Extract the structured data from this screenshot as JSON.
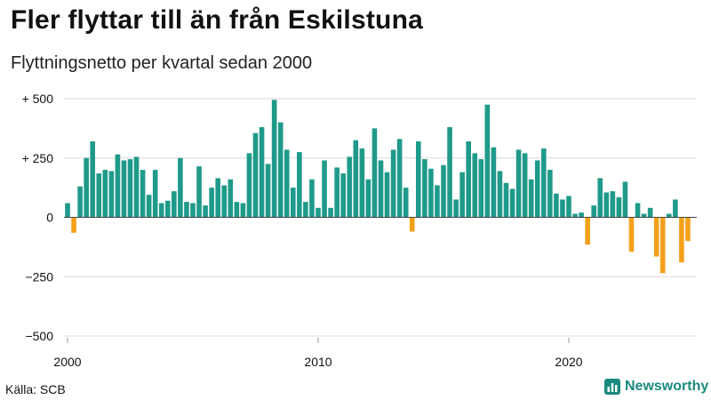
{
  "header": {
    "title": "Fler flyttar till än från Eskilstuna",
    "subtitle": "Flyttningsnetto per kvartal sedan 2000"
  },
  "footer": {
    "source": "Källa: SCB",
    "brand": "Newsworthy",
    "brand_icon": "bar-chart-logo-icon"
  },
  "colors": {
    "positive": "#1f9a8a",
    "negative": "#f5a01a",
    "grid": "#d9d9d9",
    "zero_line": "#444444",
    "brand": "#1a8a7e"
  },
  "chart_data": {
    "type": "bar",
    "title": "Fler flyttar till än från Eskilstuna",
    "subtitle": "Flyttningsnetto per kvartal sedan 2000",
    "xlabel": "",
    "ylabel": "",
    "ylim": [
      -500,
      500
    ],
    "yticks": [
      500,
      250,
      0,
      -250,
      -500
    ],
    "ytick_labels": [
      "+ 500",
      "+ 250",
      "0",
      "−250",
      "−500"
    ],
    "xticks": [
      {
        "label": "2000",
        "index": 0
      },
      {
        "label": "2010",
        "index": 40
      },
      {
        "label": "2020",
        "index": 80
      }
    ],
    "start": "2000 Q1",
    "grid": true,
    "values": [
      60,
      -65,
      130,
      250,
      320,
      185,
      200,
      195,
      265,
      240,
      245,
      255,
      200,
      95,
      200,
      60,
      70,
      110,
      250,
      65,
      60,
      215,
      50,
      125,
      165,
      135,
      160,
      65,
      60,
      270,
      355,
      380,
      225,
      495,
      400,
      285,
      125,
      275,
      65,
      160,
      40,
      240,
      40,
      210,
      185,
      255,
      325,
      290,
      160,
      375,
      240,
      190,
      285,
      330,
      125,
      -60,
      320,
      245,
      205,
      135,
      220,
      380,
      75,
      190,
      320,
      270,
      245,
      475,
      295,
      195,
      145,
      120,
      285,
      270,
      160,
      240,
      290,
      200,
      100,
      75,
      90,
      15,
      20,
      -115,
      50,
      165,
      105,
      110,
      85,
      150,
      -145,
      60,
      15,
      40,
      -165,
      -235,
      15,
      75,
      -190,
      -100
    ]
  }
}
